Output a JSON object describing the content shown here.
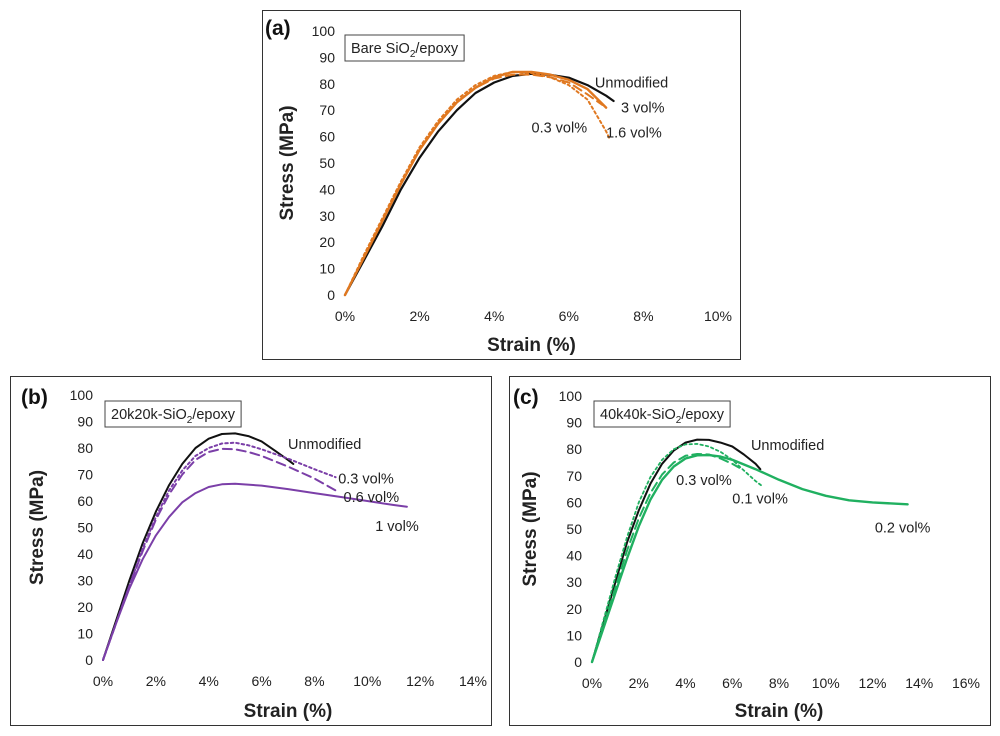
{
  "chart_data": [
    {
      "type": "line",
      "panel_label": "(a)",
      "title": {
        "prefix": "Bare SiO",
        "sub": "2",
        "suffix": "/epoxy"
      },
      "xlabel": "Strain (%)",
      "ylabel": "Stress (MPa)",
      "xlim": [
        0,
        10
      ],
      "ylim": [
        0,
        100
      ],
      "xticks": [
        0,
        2,
        4,
        6,
        8,
        10
      ],
      "xtick_labels": [
        "0%",
        "2%",
        "4%",
        "6%",
        "8%",
        "10%"
      ],
      "yticks": [
        0,
        10,
        20,
        30,
        40,
        50,
        60,
        70,
        80,
        90,
        100
      ],
      "ytick_labels": [
        "0",
        "10",
        "20",
        "30",
        "40",
        "50",
        "60",
        "70",
        "80",
        "90",
        "100"
      ],
      "series": [
        {
          "name": "Unmodified",
          "color": "#111111",
          "dash": "solid",
          "width": 2.2,
          "points": [
            [
              0,
              0
            ],
            [
              0.5,
              13
            ],
            [
              1,
              26
            ],
            [
              1.5,
              40
            ],
            [
              2,
              52
            ],
            [
              2.5,
              62
            ],
            [
              3,
              70
            ],
            [
              3.5,
              76.5
            ],
            [
              4,
              80.5
            ],
            [
              4.5,
              83
            ],
            [
              5,
              83.8
            ],
            [
              5.5,
              83.4
            ],
            [
              6,
              82.3
            ],
            [
              6.5,
              79.5
            ],
            [
              7,
              75.5
            ],
            [
              7.2,
              73.5
            ]
          ]
        },
        {
          "name": "3 vol%",
          "color": "#e07820",
          "dash": "solid",
          "width": 2.4,
          "points": [
            [
              0,
              0
            ],
            [
              0.5,
              14
            ],
            [
              1,
              28
            ],
            [
              1.5,
              42
            ],
            [
              2,
              55
            ],
            [
              2.5,
              65
            ],
            [
              3,
              73
            ],
            [
              3.5,
              78.5
            ],
            [
              4,
              82.5
            ],
            [
              4.5,
              84.5
            ],
            [
              5,
              84.5
            ],
            [
              5.5,
              83.5
            ],
            [
              6,
              81.5
            ],
            [
              6.5,
              78
            ],
            [
              7,
              71
            ]
          ]
        },
        {
          "name": "1.6 vol%",
          "color": "#e07820",
          "dash": "dot",
          "width": 2,
          "points": [
            [
              0,
              0
            ],
            [
              0.5,
              15
            ],
            [
              1,
              29
            ],
            [
              1.5,
              43
            ],
            [
              2,
              56
            ],
            [
              2.5,
              66
            ],
            [
              3,
              74
            ],
            [
              3.5,
              79.5
            ],
            [
              4,
              83
            ],
            [
              4.5,
              84.5
            ],
            [
              5,
              84
            ],
            [
              5.5,
              82.5
            ],
            [
              6,
              79.5
            ],
            [
              6.5,
              74
            ],
            [
              7,
              62
            ],
            [
              7.1,
              59
            ]
          ]
        },
        {
          "name": "0.3 vol%",
          "color": "#e07820",
          "dash": "dash",
          "width": 2,
          "points": [
            [
              0,
              0
            ],
            [
              0.5,
              14
            ],
            [
              1,
              28
            ],
            [
              1.5,
              42
            ],
            [
              2,
              55
            ],
            [
              2.5,
              65
            ],
            [
              3,
              73
            ],
            [
              3.5,
              78.5
            ],
            [
              4,
              82
            ],
            [
              4.5,
              83.5
            ],
            [
              5,
              83.5
            ],
            [
              5.5,
              82.5
            ],
            [
              6,
              80.5
            ],
            [
              6.5,
              76
            ],
            [
              6.9,
              72
            ]
          ]
        }
      ],
      "annotations": [
        {
          "text": "Unmodified",
          "x": 6.7,
          "y": 80.5,
          "anchor": "start"
        },
        {
          "text": "3 vol%",
          "x": 7.4,
          "y": 71,
          "anchor": "start"
        },
        {
          "text": "1.6 vol%",
          "x": 7.0,
          "y": 61.5,
          "anchor": "start"
        },
        {
          "text": "0.3 vol%",
          "x": 5.0,
          "y": 63.5,
          "anchor": "start"
        }
      ]
    },
    {
      "type": "line",
      "panel_label": "(b)",
      "title": {
        "prefix": "20k20k-SiO",
        "sub": "2",
        "suffix": "/epoxy"
      },
      "xlabel": "Strain (%)",
      "ylabel": "Stress (MPa)",
      "xlim": [
        0,
        14
      ],
      "ylim": [
        0,
        100
      ],
      "xticks": [
        0,
        2,
        4,
        6,
        8,
        10,
        12,
        14
      ],
      "xtick_labels": [
        "0%",
        "2%",
        "4%",
        "6%",
        "8%",
        "10%",
        "12%",
        "14%"
      ],
      "yticks": [
        0,
        10,
        20,
        30,
        40,
        50,
        60,
        70,
        80,
        90,
        100
      ],
      "ytick_labels": [
        "0",
        "10",
        "20",
        "30",
        "40",
        "50",
        "60",
        "70",
        "80",
        "90",
        "100"
      ],
      "series": [
        {
          "name": "Unmodified",
          "color": "#111111",
          "dash": "solid",
          "width": 2,
          "points": [
            [
              0,
              0
            ],
            [
              0.5,
              15
            ],
            [
              1,
              30
            ],
            [
              1.5,
              44
            ],
            [
              2,
              56
            ],
            [
              2.5,
              66
            ],
            [
              3,
              74
            ],
            [
              3.5,
              80
            ],
            [
              4,
              83.5
            ],
            [
              4.5,
              85.3
            ],
            [
              5,
              85.5
            ],
            [
              5.5,
              84.5
            ],
            [
              6,
              82.5
            ],
            [
              6.5,
              79
            ],
            [
              7,
              75.5
            ],
            [
              7.2,
              74
            ]
          ]
        },
        {
          "name": "0.3 vol%",
          "color": "#7b3fa8",
          "dash": "dot",
          "width": 2,
          "points": [
            [
              0,
              0
            ],
            [
              0.5,
              14
            ],
            [
              1,
              28
            ],
            [
              1.5,
              42
            ],
            [
              2,
              54
            ],
            [
              2.5,
              64
            ],
            [
              3,
              71.5
            ],
            [
              3.5,
              77
            ],
            [
              4,
              80
            ],
            [
              4.5,
              81.7
            ],
            [
              5,
              82
            ],
            [
              5.5,
              81
            ],
            [
              6,
              79.5
            ],
            [
              7,
              76
            ],
            [
              8,
              72
            ],
            [
              8.8,
              69
            ]
          ]
        },
        {
          "name": "0.6 vol%",
          "color": "#7b3fa8",
          "dash": "dash",
          "width": 2,
          "points": [
            [
              0,
              0
            ],
            [
              0.5,
              14
            ],
            [
              1,
              28
            ],
            [
              1.5,
              41
            ],
            [
              2,
              53
            ],
            [
              2.5,
              62.5
            ],
            [
              3,
              70
            ],
            [
              3.5,
              75.5
            ],
            [
              4,
              78.5
            ],
            [
              4.5,
              79.7
            ],
            [
              5,
              79.5
            ],
            [
              5.5,
              78.5
            ],
            [
              6,
              77
            ],
            [
              7,
              73
            ],
            [
              8,
              68.5
            ],
            [
              8.8,
              64
            ]
          ]
        },
        {
          "name": "1 vol%",
          "color": "#7b3fa8",
          "dash": "solid",
          "width": 2,
          "points": [
            [
              0,
              0
            ],
            [
              0.5,
              14
            ],
            [
              1,
              27
            ],
            [
              1.5,
              38
            ],
            [
              2,
              47
            ],
            [
              2.5,
              54
            ],
            [
              3,
              59.5
            ],
            [
              3.5,
              63
            ],
            [
              4,
              65.3
            ],
            [
              4.5,
              66.3
            ],
            [
              5,
              66.5
            ],
            [
              6,
              65.8
            ],
            [
              7,
              64.5
            ],
            [
              8,
              63
            ],
            [
              9,
              61.5
            ],
            [
              10,
              60
            ],
            [
              11,
              58.5
            ],
            [
              11.5,
              57.8
            ]
          ]
        }
      ],
      "annotations": [
        {
          "text": "Unmodified",
          "x": 7.0,
          "y": 81.5,
          "anchor": "start"
        },
        {
          "text": "0.3 vol%",
          "x": 8.9,
          "y": 68.5,
          "anchor": "start"
        },
        {
          "text": "0.6 vol%",
          "x": 9.1,
          "y": 61.5,
          "anchor": "start"
        },
        {
          "text": "1 vol%",
          "x": 10.3,
          "y": 50.5,
          "anchor": "start"
        }
      ]
    },
    {
      "type": "line",
      "panel_label": "(c)",
      "title": {
        "prefix": "40k40k-SiO",
        "sub": "2",
        "suffix": "/epoxy"
      },
      "xlabel": "Strain (%)",
      "ylabel": "Stress (MPa)",
      "xlim": [
        0,
        16
      ],
      "ylim": [
        0,
        100
      ],
      "xticks": [
        0,
        2,
        4,
        6,
        8,
        10,
        12,
        14,
        16
      ],
      "xtick_labels": [
        "0%",
        "2%",
        "4%",
        "6%",
        "8%",
        "10%",
        "12%",
        "14%",
        "16%"
      ],
      "yticks": [
        0,
        10,
        20,
        30,
        40,
        50,
        60,
        70,
        80,
        90,
        100
      ],
      "ytick_labels": [
        "0",
        "10",
        "20",
        "30",
        "40",
        "50",
        "60",
        "70",
        "80",
        "90",
        "100"
      ],
      "series": [
        {
          "name": "Unmodified",
          "color": "#111111",
          "dash": "solid",
          "width": 2,
          "points": [
            [
              0,
              0
            ],
            [
              0.5,
              15
            ],
            [
              1,
              30
            ],
            [
              1.5,
              45
            ],
            [
              2,
              57
            ],
            [
              2.5,
              67
            ],
            [
              3,
              74.5
            ],
            [
              3.5,
              79.5
            ],
            [
              4,
              82.5
            ],
            [
              4.5,
              83.6
            ],
            [
              5,
              83.5
            ],
            [
              5.5,
              82.5
            ],
            [
              6,
              81
            ],
            [
              6.5,
              78
            ],
            [
              7,
              74.5
            ],
            [
              7.2,
              72.5
            ]
          ]
        },
        {
          "name": "0.1 vol%",
          "color": "#20b060",
          "dash": "dot",
          "width": 1.8,
          "points": [
            [
              0,
              0
            ],
            [
              0.5,
              16
            ],
            [
              1,
              32
            ],
            [
              1.5,
              47
            ],
            [
              2,
              60
            ],
            [
              2.5,
              69.5
            ],
            [
              3,
              76
            ],
            [
              3.5,
              80
            ],
            [
              4,
              81.8
            ],
            [
              4.5,
              82
            ],
            [
              5,
              81
            ],
            [
              5.5,
              79
            ],
            [
              6,
              76
            ],
            [
              6.5,
              72
            ],
            [
              7,
              68
            ],
            [
              7.3,
              66
            ]
          ]
        },
        {
          "name": "0.3 vol%",
          "color": "#20b060",
          "dash": "dash",
          "width": 2,
          "points": [
            [
              0,
              0
            ],
            [
              0.5,
              14
            ],
            [
              1,
              28
            ],
            [
              1.5,
              42
            ],
            [
              2,
              54
            ],
            [
              2.5,
              63.5
            ],
            [
              3,
              70.5
            ],
            [
              3.5,
              75
            ],
            [
              4,
              77.5
            ],
            [
              4.5,
              78.2
            ],
            [
              5,
              78
            ],
            [
              5.5,
              76.5
            ],
            [
              6,
              74.5
            ],
            [
              6.3,
              73
            ]
          ]
        },
        {
          "name": "0.2 vol%",
          "color": "#20b060",
          "dash": "solid",
          "width": 2.4,
          "points": [
            [
              0,
              0
            ],
            [
              0.5,
              13
            ],
            [
              1,
              26
            ],
            [
              1.5,
              39
            ],
            [
              2,
              51
            ],
            [
              2.5,
              61
            ],
            [
              3,
              68.5
            ],
            [
              3.5,
              73.5
            ],
            [
              4,
              76.5
            ],
            [
              4.5,
              77.7
            ],
            [
              5,
              77.8
            ],
            [
              5.5,
              77.2
            ],
            [
              6,
              76
            ],
            [
              7,
              72.5
            ],
            [
              8,
              68.5
            ],
            [
              9,
              65
            ],
            [
              10,
              62.5
            ],
            [
              11,
              60.8
            ],
            [
              12,
              60
            ],
            [
              13,
              59.5
            ],
            [
              13.5,
              59.3
            ]
          ]
        }
      ],
      "annotations": [
        {
          "text": "Unmodified",
          "x": 6.8,
          "y": 81.5,
          "anchor": "start"
        },
        {
          "text": "0.3 vol%",
          "x": 3.6,
          "y": 68.5,
          "anchor": "start"
        },
        {
          "text": "0.1 vol%",
          "x": 6.0,
          "y": 61.5,
          "anchor": "start"
        },
        {
          "text": "0.2 vol%",
          "x": 12.1,
          "y": 50.5,
          "anchor": "start"
        }
      ]
    }
  ]
}
